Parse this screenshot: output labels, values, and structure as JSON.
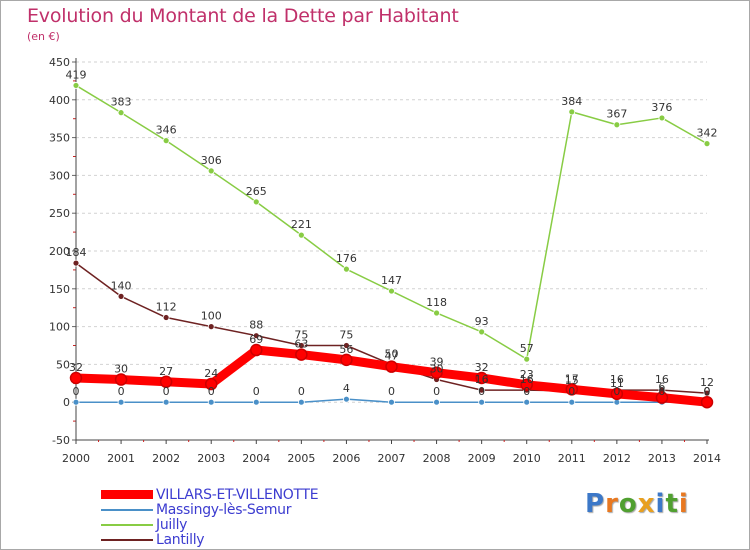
{
  "chart_data": {
    "type": "line",
    "title": "Evolution du Montant de la Dette par Habitant",
    "subtitle": "(en €)",
    "x": [
      "2000",
      "2001",
      "2002",
      "2003",
      "2004",
      "2005",
      "2006",
      "2007",
      "2008",
      "2009",
      "2010",
      "2011",
      "2012",
      "2013",
      "2014"
    ],
    "yticks": [
      "-50",
      "0",
      "50",
      "100",
      "150",
      "200",
      "250",
      "300",
      "350",
      "400",
      "450"
    ],
    "ylim": [
      -50,
      450
    ],
    "grid": "horizontal-dashed",
    "legend_position": "bottom-left",
    "series": [
      {
        "name": "Juilly",
        "color": "#88cc44",
        "values": [
          419,
          383,
          346,
          306,
          265,
          221,
          176,
          147,
          118,
          93,
          57,
          384,
          367,
          376,
          342
        ],
        "labels": [
          "419",
          "383",
          "346",
          "306",
          "265",
          "221",
          "176",
          "147",
          "118",
          "93",
          "57",
          "384",
          "367",
          "376",
          "342"
        ]
      },
      {
        "name": "Lantilly",
        "color": "#6e2222",
        "values": [
          184,
          140,
          112,
          100,
          88,
          75,
          75,
          50,
          30,
          16,
          16,
          15,
          16,
          16,
          12
        ],
        "labels": [
          "184",
          "140",
          "112",
          "100",
          "88",
          "75",
          "75",
          "50",
          "30",
          "16",
          "16",
          "15",
          "16",
          "16",
          "12"
        ]
      },
      {
        "name": "Massingy-lès-Semur",
        "color": "#4a90c8",
        "values": [
          0,
          0,
          0,
          0,
          0,
          0,
          4,
          0,
          0,
          0,
          0,
          0,
          0,
          0,
          0
        ],
        "labels": [
          "0",
          "0",
          "0",
          "0",
          "0",
          "0",
          "4",
          "0",
          "0",
          "0",
          "0",
          "0",
          "0",
          "0",
          "0"
        ]
      },
      {
        "name": "VILLARS-ET-VILLENOTTE",
        "color": "#ff0000",
        "values": [
          32,
          30,
          27,
          24,
          69,
          63,
          56,
          47,
          39,
          32,
          23,
          17,
          11,
          6,
          0
        ],
        "labels": [
          "32",
          "30",
          "27",
          "24",
          "69",
          "63",
          "56",
          "47",
          "39",
          "32",
          "23",
          "17",
          "11",
          "6",
          "0"
        ]
      }
    ]
  },
  "legend": {
    "items": [
      {
        "label": "VILLARS-ET-VILLENOTTE",
        "color": "#ff0000",
        "thickness": 9
      },
      {
        "label": "Massingy-lès-Semur",
        "color": "#4a90c8",
        "thickness": 2
      },
      {
        "label": "Juilly",
        "color": "#88cc44",
        "thickness": 2
      },
      {
        "label": "Lantilly",
        "color": "#6e2222",
        "thickness": 2
      }
    ]
  },
  "logo": {
    "letters": [
      "P",
      "r",
      "o",
      "x",
      "i",
      "t",
      "i"
    ],
    "colors": [
      "#3c78c8",
      "#e87820",
      "#50a030",
      "#e8a020",
      "#3c78c8",
      "#50a030",
      "#e87820"
    ]
  }
}
